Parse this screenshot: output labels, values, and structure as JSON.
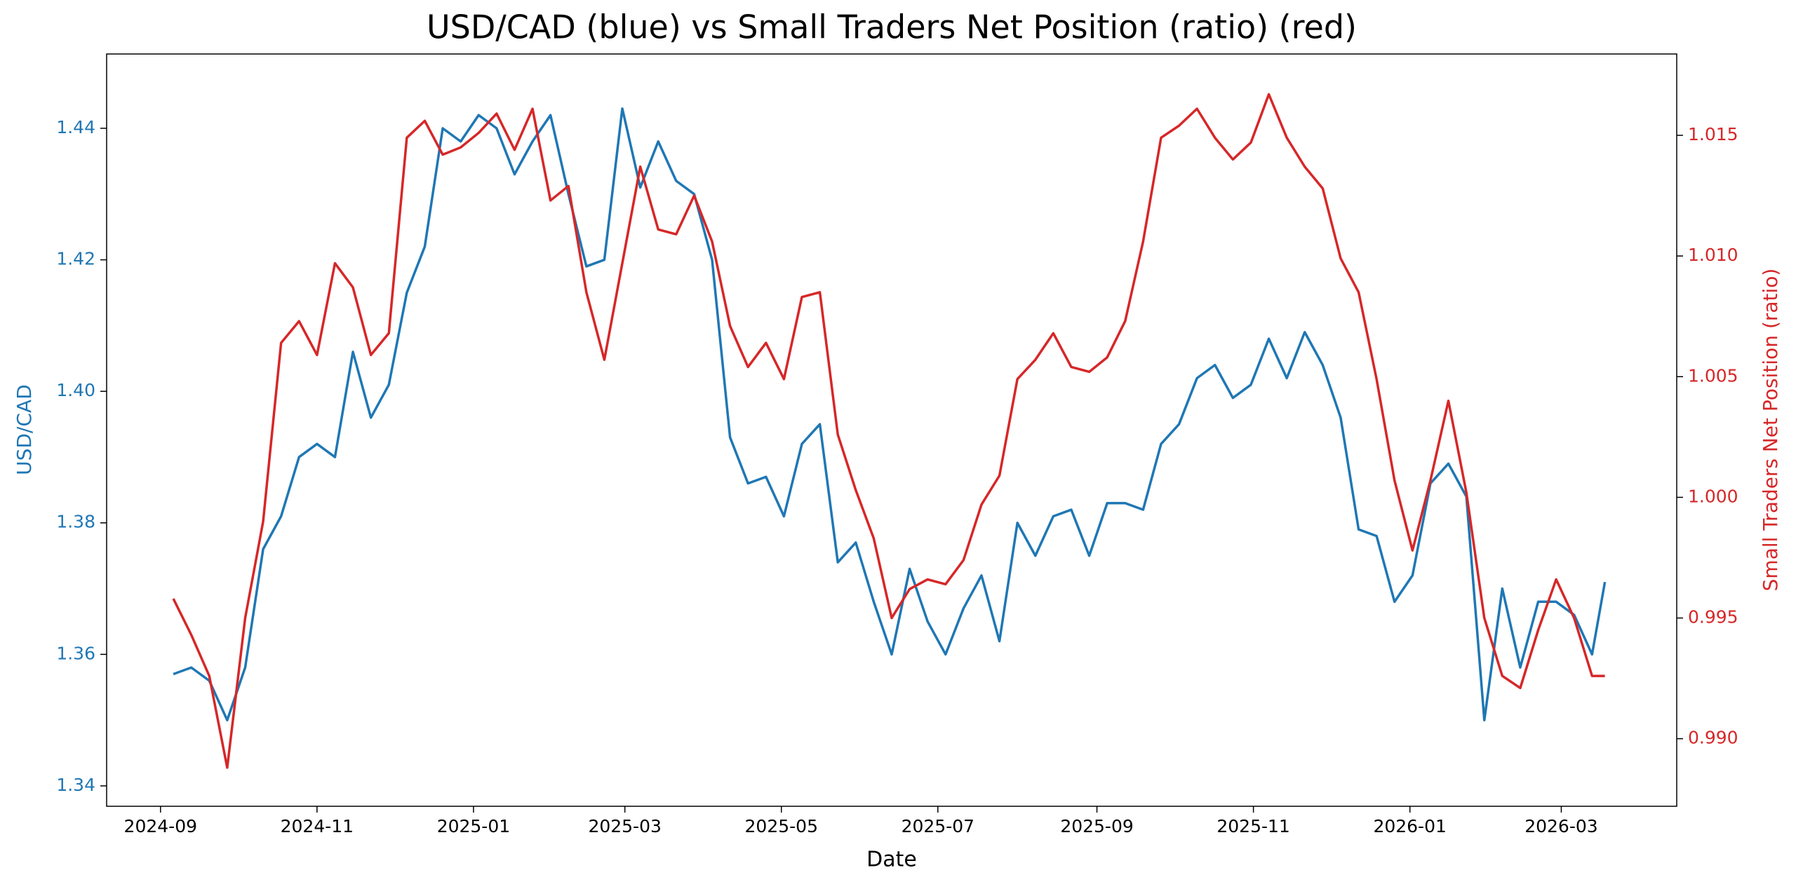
{
  "chart_data": {
    "type": "line",
    "title": "USD/CAD (blue) vs Small Traders Net Position (ratio) (red)",
    "xlabel": "Date",
    "ylabel": "USD/CAD",
    "y2label": "Small Traders Net Position (ratio)",
    "x": [
      "2024-09-06",
      "2024-09-13",
      "2024-09-20",
      "2024-09-27",
      "2024-10-04",
      "2024-10-11",
      "2024-10-18",
      "2024-10-25",
      "2024-11-01",
      "2024-11-08",
      "2024-11-15",
      "2024-11-22",
      "2024-11-29",
      "2024-12-06",
      "2024-12-13",
      "2024-12-20",
      "2024-12-27",
      "2025-01-03",
      "2025-01-10",
      "2025-01-17",
      "2025-01-24",
      "2025-01-31",
      "2025-02-07",
      "2025-02-14",
      "2025-02-21",
      "2025-02-28",
      "2025-03-07",
      "2025-03-14",
      "2025-03-21",
      "2025-03-28",
      "2025-04-04",
      "2025-04-11",
      "2025-04-18",
      "2025-04-25",
      "2025-05-02",
      "2025-05-09",
      "2025-05-16",
      "2025-05-23",
      "2025-05-30",
      "2025-06-06",
      "2025-06-13",
      "2025-06-20",
      "2025-06-27",
      "2025-07-04",
      "2025-07-11",
      "2025-07-18",
      "2025-07-25",
      "2025-08-01",
      "2025-08-08",
      "2025-08-15",
      "2025-08-22",
      "2025-08-29",
      "2025-09-05",
      "2025-09-12",
      "2025-09-19",
      "2025-09-26",
      "2025-10-03",
      "2025-10-10",
      "2025-10-17",
      "2025-10-24",
      "2025-10-31",
      "2025-11-07",
      "2025-11-14",
      "2025-11-21",
      "2025-11-28",
      "2025-12-05",
      "2025-12-12",
      "2025-12-19",
      "2025-12-26",
      "2026-01-02",
      "2026-01-09",
      "2026-01-16",
      "2026-01-23",
      "2026-01-30",
      "2026-02-06",
      "2026-02-13",
      "2026-02-20",
      "2026-02-27",
      "2026-03-06",
      "2026-03-13",
      "2026-03-18"
    ],
    "series": [
      {
        "color": "#1f77b4",
        "axis": "y",
        "values": [
          1.357,
          1.358,
          1.356,
          1.35,
          1.358,
          1.376,
          1.381,
          1.39,
          1.392,
          1.39,
          1.406,
          1.396,
          1.401,
          1.415,
          1.422,
          1.44,
          1.438,
          1.442,
          1.44,
          1.433,
          1.438,
          1.442,
          1.43,
          1.419,
          1.42,
          1.443,
          1.431,
          1.438,
          1.432,
          1.43,
          1.42,
          1.393,
          1.386,
          1.387,
          1.381,
          1.392,
          1.395,
          1.374,
          1.377,
          1.368,
          1.36,
          1.373,
          1.365,
          1.36,
          1.367,
          1.372,
          1.362,
          1.38,
          1.375,
          1.381,
          1.382,
          1.375,
          1.383,
          1.383,
          1.382,
          1.392,
          1.395,
          1.402,
          1.404,
          1.399,
          1.401,
          1.408,
          1.402,
          1.409,
          1.404,
          1.396,
          1.379,
          1.378,
          1.368,
          1.372,
          1.386,
          1.389,
          1.384,
          1.35,
          1.37,
          1.358,
          1.368,
          1.368,
          1.366,
          1.36,
          1.371
        ]
      },
      {
        "color": "#d62728",
        "axis": "y2",
        "values": [
          0.9958,
          0.9943,
          0.9926,
          0.9888,
          0.995,
          0.999,
          1.0064,
          1.0073,
          1.0059,
          1.0097,
          1.0087,
          1.0059,
          1.0068,
          1.0149,
          1.0156,
          1.0142,
          1.0145,
          1.0151,
          1.0159,
          1.0144,
          1.0161,
          1.0123,
          1.0129,
          1.0085,
          1.0057,
          1.0097,
          1.0137,
          1.0111,
          1.0109,
          1.0125,
          1.0106,
          1.0071,
          1.0054,
          1.0064,
          1.0049,
          1.0083,
          1.0085,
          1.0026,
          1.0003,
          0.9983,
          0.995,
          0.9962,
          0.9966,
          0.9964,
          0.9974,
          0.9997,
          1.0009,
          1.0049,
          1.0057,
          1.0068,
          1.0054,
          1.0052,
          1.0058,
          1.0073,
          1.0106,
          1.0149,
          1.0154,
          1.0161,
          1.0149,
          1.014,
          1.0147,
          1.0167,
          1.0149,
          1.0137,
          1.0128,
          1.0099,
          1.0085,
          1.0049,
          1.0007,
          0.9978,
          1.0007,
          1.004,
          1.0002,
          0.995,
          0.9926,
          0.9921,
          0.9945,
          0.9966,
          0.995,
          0.9926,
          0.9926
        ]
      }
    ],
    "xlim": [
      "2024-08-11",
      "2026-04-15"
    ],
    "xticks": [
      {
        "value": "2024-09-01",
        "label": "2024-09"
      },
      {
        "value": "2024-11-01",
        "label": "2024-11"
      },
      {
        "value": "2025-01-01",
        "label": "2025-01"
      },
      {
        "value": "2025-03-01",
        "label": "2025-03"
      },
      {
        "value": "2025-05-01",
        "label": "2025-05"
      },
      {
        "value": "2025-07-01",
        "label": "2025-07"
      },
      {
        "value": "2025-09-01",
        "label": "2025-09"
      },
      {
        "value": "2025-11-01",
        "label": "2025-11"
      },
      {
        "value": "2026-01-01",
        "label": "2026-01"
      },
      {
        "value": "2026-03-01",
        "label": "2026-03"
      }
    ],
    "ylim": [
      1.3369,
      1.4513
    ],
    "yticks": [
      1.34,
      1.36,
      1.38,
      {
        "value": 1.4,
        "label": "1.40"
      },
      1.42,
      1.44
    ],
    "y2lim": [
      0.9872,
      1.01837
    ],
    "y2ticks": [
      {
        "value": 0.99,
        "label": "0.990"
      },
      0.995,
      {
        "value": 1,
        "label": "1.000"
      },
      1.005,
      {
        "value": 1.01,
        "label": "1.010"
      },
      1.015
    ],
    "grid": false
  }
}
